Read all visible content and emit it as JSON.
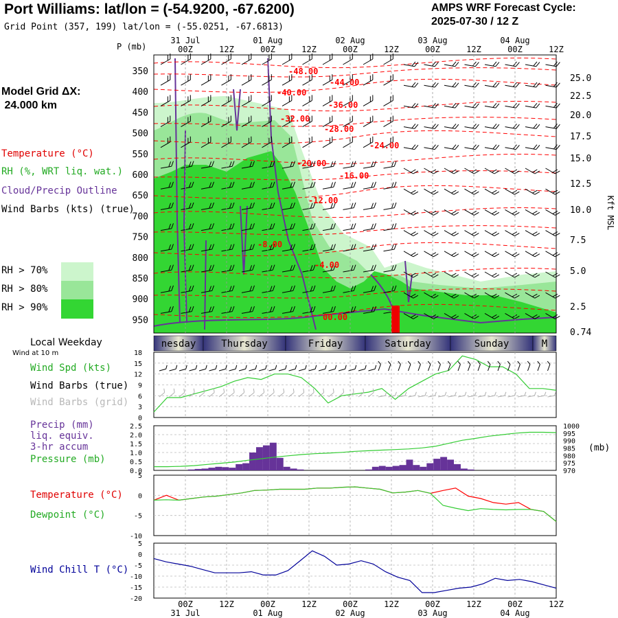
{
  "header": {
    "title": "Port Williams:  lat/lon = (-54.9200, -67.6200)",
    "subtitle": "Grid Point (357, 199) lat/lon = (-55.0251, -67.6813)",
    "cycle_line1": "AMPS WRF Forecast Cycle:",
    "cycle_line2": "2025-07-30 / 12  Z"
  },
  "time_axis": {
    "ticks": [
      "00Z",
      "12Z",
      "00Z",
      "12Z",
      "00Z",
      "12Z",
      "00Z",
      "12Z",
      "00Z",
      "12Z"
    ],
    "dates": [
      "31 Jul",
      "01 Aug",
      "02 Aug",
      "03 Aug",
      "04 Aug"
    ]
  },
  "left_labels": {
    "model_grid": "Model Grid ΔX:",
    "model_grid_value": " 24.000 km",
    "temperature": "Temperature (°C)",
    "rh": "RH (%, WRT liq. wat.)",
    "cloud": "Cloud/Precip Outline",
    "wind_barbs": "Wind Barbs (kts) (true)",
    "rh70": "RH > 70%",
    "rh80": "RH > 80%",
    "rh90": "RH > 90%",
    "local_weekday": "Local Weekday",
    "wind_at": "Wind at 10 m",
    "wind_spd": "Wind Spd (kts)",
    "wind_barbs_true": "Wind Barbs (true)",
    "wind_barbs_grid": "Wind Barbs (grid)",
    "precip1": "Precip (mm)",
    "precip2": "liq. equiv.",
    "precip3": "3-hr accum",
    "pressure": "Pressure (mb)",
    "temp2": "Temperature (°C)",
    "dewpoint": "Dewpoint (°C)",
    "windchill": "Wind Chill T (°C)"
  },
  "colors": {
    "rh70": "#ccf5cc",
    "rh80": "#99e699",
    "rh90": "#33d633",
    "temperature": "#ff0000",
    "cloud": "#663399",
    "precip": "#663399",
    "pressure": "#33cc33",
    "windchill": "#000099"
  },
  "chart_data": [
    {
      "type": "area",
      "name": "cross-section",
      "yaxis_label": "P (mb)",
      "yticks": [
        "350",
        "400",
        "450",
        "500",
        "550",
        "600",
        "650",
        "700",
        "750",
        "800",
        "850",
        "900",
        "950"
      ],
      "right_axis_label": "Kft MSL",
      "right_ticks": [
        "25.0",
        "22.5",
        "20.0",
        "17.5",
        "15.0",
        "12.5",
        "10.0",
        "7.5",
        "5.0",
        "2.5",
        "0.74"
      ],
      "temperature_labels": [
        "-48.00",
        "-44.00",
        "-40.00",
        "-36.00",
        "-32.00",
        "-28.00",
        "-24.00",
        "-20.00",
        "-16.00",
        "-12.00",
        "-8.00",
        "-4.00",
        "00.00"
      ]
    },
    {
      "type": "line",
      "name": "weekday bar",
      "days": [
        "nesday",
        "Thursday",
        "Friday",
        "Saturday",
        "Sunday",
        "M"
      ]
    },
    {
      "type": "line",
      "name": "Wind Spd (kts)",
      "ylim": [
        0,
        18
      ],
      "yticks": [
        "18",
        "15",
        "12",
        "9",
        "6",
        "3",
        "0"
      ],
      "values": [
        1.5,
        5.5,
        5.5,
        6.5,
        7.5,
        8.5,
        10,
        11,
        10.5,
        12,
        12,
        11,
        8,
        4,
        6,
        6.5,
        7,
        8,
        5,
        8,
        10,
        12,
        13,
        17,
        16,
        14,
        14,
        12,
        8,
        8,
        7.5
      ]
    },
    {
      "type": "bar",
      "name": "Precip / Pressure",
      "ylim": [
        0,
        2.5
      ],
      "yticks": [
        "2.5",
        "2.0",
        "1.5",
        "1.0",
        "0.5",
        "0.0"
      ],
      "right_ticks": [
        "1000",
        "995",
        "990",
        "985",
        "980",
        "975",
        "970"
      ],
      "right_label": "(mb)",
      "precip": [
        0,
        0,
        0,
        0,
        0,
        0.05,
        0.08,
        0.1,
        0.15,
        0.2,
        0.18,
        0.15,
        0.35,
        0.4,
        1.0,
        1.3,
        1.4,
        1.55,
        0.7,
        0.2,
        0.1,
        0.05,
        0,
        0,
        0,
        0,
        0,
        0,
        0,
        0,
        0,
        0.05,
        0.2,
        0.25,
        0.2,
        0.25,
        0.3,
        0.6,
        0.3,
        0.2,
        0.4,
        0.65,
        0.75,
        0.6,
        0.35,
        0.1,
        0.05,
        0,
        0,
        0,
        0,
        0,
        0,
        0,
        0,
        0,
        0,
        0,
        0
      ],
      "pressure": [
        972.5,
        972.5,
        972.7,
        973.2,
        974,
        974.8,
        975.6,
        976.8,
        977.8,
        978.9,
        979.8,
        980.6,
        981.2,
        981.6,
        982.1,
        982.8,
        983.2,
        983.6,
        984,
        984.4,
        985.1,
        986.2,
        988.2,
        990.2,
        991.5,
        993,
        994,
        995,
        995.6,
        995.6,
        995.4
      ]
    },
    {
      "type": "line",
      "name": "Temperature / Dewpoint",
      "ylim": [
        -10,
        5
      ],
      "yticks": [
        "5",
        "0",
        "-5",
        "-10"
      ],
      "temperature": [
        -1.2,
        0,
        -1.2,
        -0.8,
        -0.4,
        -0.2,
        0.2,
        0.6,
        1.2,
        1.3,
        1.5,
        1.5,
        1.5,
        1.8,
        1.8,
        2,
        2.1,
        1.8,
        1.5,
        0.6,
        0.8,
        1.2,
        0.5,
        1.2,
        1.8,
        -0.2,
        -0.8,
        -1.8,
        -2.2,
        -1.8,
        -3.5,
        -4,
        -6.5
      ],
      "dewpoint": [
        -1.2,
        -1.1,
        -1.2,
        -0.8,
        -0.4,
        -0.2,
        0.2,
        0.6,
        1.2,
        1.3,
        1.5,
        1.5,
        1.5,
        1.8,
        1.8,
        2,
        2.1,
        1.8,
        1.5,
        0.6,
        0.8,
        1.2,
        0.5,
        -2.5,
        -3.2,
        -3.8,
        -3.3,
        -3.5,
        -3.6,
        -3.5,
        -3.5,
        -4,
        -6.5
      ]
    },
    {
      "type": "line",
      "name": "Wind Chill T (°C)",
      "ylim": [
        -20,
        5
      ],
      "yticks": [
        "5",
        "0",
        "-5",
        "-10",
        "-15",
        "-20"
      ],
      "values": [
        -2,
        -3.5,
        -4.5,
        -5.5,
        -7,
        -8.5,
        -8.5,
        -8.5,
        -8,
        -9.5,
        -9.5,
        -7.5,
        -3,
        1.5,
        -1,
        -5,
        -4.5,
        -3,
        -4.5,
        -8,
        -10.5,
        -12,
        -17.5,
        -17.5,
        -16.5,
        -15.5,
        -15,
        -13.5,
        -11,
        -12,
        -11.5,
        -12.5,
        -14,
        -15.5
      ]
    }
  ]
}
